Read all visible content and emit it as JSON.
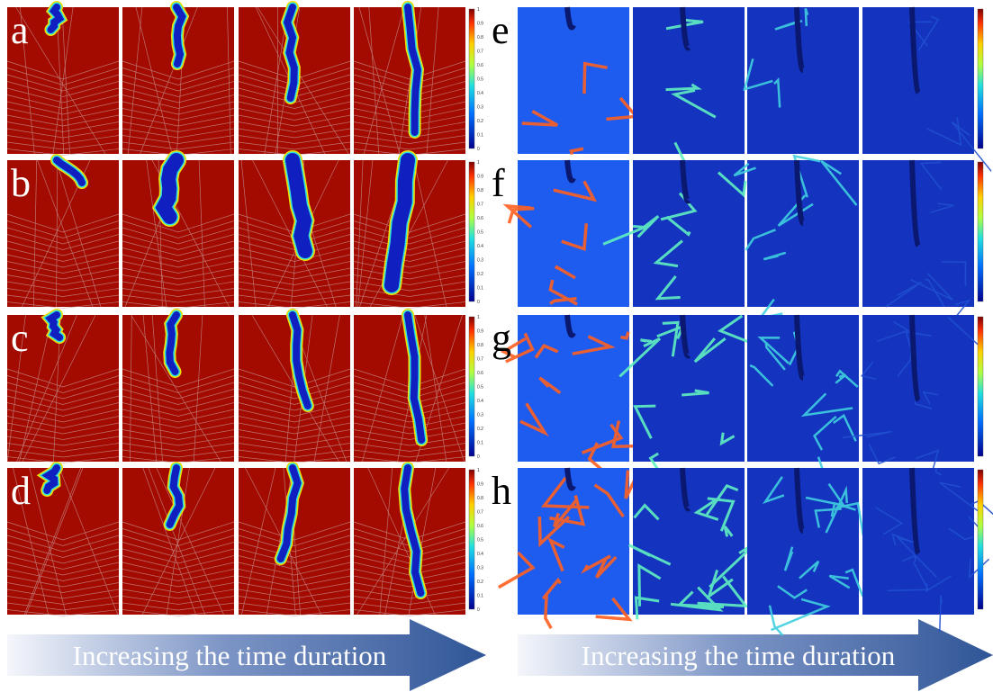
{
  "left_panel": {
    "labels": [
      "a",
      "b",
      "c",
      "d"
    ],
    "colorbar_ticks": [
      0,
      0.1,
      0.2,
      0.3,
      0.4,
      0.5,
      0.6,
      0.7,
      0.8,
      0.9,
      1
    ],
    "arrow_text": "Increasing the time duration"
  },
  "right_panel": {
    "labels": [
      "e",
      "f",
      "g",
      "h"
    ],
    "arrow_text": "Increasing the time duration"
  }
}
